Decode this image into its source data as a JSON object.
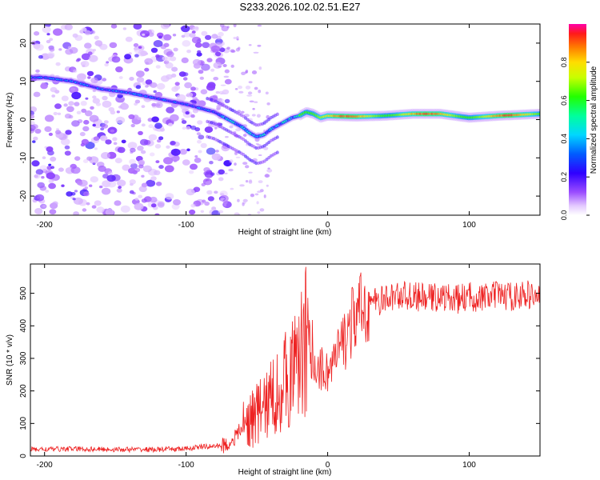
{
  "title": "S233.2026.102.02.51.E27",
  "colors": {
    "snr_line": "#ee2222",
    "axis": "#000000",
    "spectrum_core": "#ff2b2b",
    "spectrum_halo": "#8a2be2"
  },
  "chart_data": [
    {
      "type": "heatmap",
      "name": "spectrogram",
      "xlabel": "Height of straight line (km)",
      "ylabel": "Frequency (Hz)",
      "xlim": [
        -210,
        150
      ],
      "ylim": [
        -25,
        25
      ],
      "xticks": [
        "-200",
        "-100",
        "0",
        "100"
      ],
      "yticks": [
        "20",
        "10",
        "0",
        "-10",
        "-20"
      ],
      "ridge": {
        "x": [
          -200,
          -180,
          -160,
          -140,
          -120,
          -100,
          -90,
          -80,
          -70,
          -60,
          -55,
          -50,
          -45,
          -40,
          -35,
          -30,
          -25,
          -20,
          -15,
          -10,
          -5,
          0,
          20,
          40,
          60,
          80,
          100,
          120,
          150
        ],
        "y": [
          11,
          10,
          8,
          7,
          5.5,
          4,
          3,
          2,
          0,
          -2,
          -3.5,
          -4.5,
          -4,
          -2.5,
          -1.5,
          -0.5,
          0.5,
          1,
          2,
          1.5,
          0.5,
          1,
          0.8,
          1,
          1.5,
          1.5,
          0.5,
          1,
          1.5
        ]
      },
      "colorbar": {
        "label": "Normalized spectral amplitude",
        "range": [
          0,
          1
        ],
        "ticks": [
          "0.0",
          "0.2",
          "0.4",
          "0.6",
          "0.8"
        ]
      }
    },
    {
      "type": "line",
      "name": "snr",
      "xlabel": "Height of straight line (km)",
      "ylabel": "SNR (10 * v/v)",
      "xlim": [
        -210,
        150
      ],
      "ylim": [
        0,
        590
      ],
      "xticks": [
        "-200",
        "-100",
        "0",
        "100"
      ],
      "yticks": [
        "500",
        "400",
        "300",
        "200",
        "100",
        "0"
      ],
      "series": [
        {
          "name": "SNR",
          "x": [
            -210,
            -180,
            -150,
            -120,
            -100,
            -90,
            -80,
            -70,
            -65,
            -60,
            -55,
            -50,
            -45,
            -40,
            -35,
            -30,
            -25,
            -20,
            -18,
            -15,
            -10,
            -5,
            0,
            5,
            10,
            15,
            20,
            25,
            30,
            40,
            50,
            60,
            70,
            80,
            90,
            100,
            110,
            120,
            130,
            140,
            150
          ],
          "y": [
            20,
            22,
            20,
            20,
            22,
            28,
            30,
            35,
            60,
            90,
            110,
            130,
            150,
            175,
            200,
            230,
            260,
            290,
            330,
            310,
            280,
            270,
            260,
            290,
            340,
            390,
            430,
            450,
            470,
            480,
            495,
            490,
            485,
            490,
            480,
            490,
            485,
            495,
            490,
            495,
            490
          ]
        }
      ]
    }
  ]
}
